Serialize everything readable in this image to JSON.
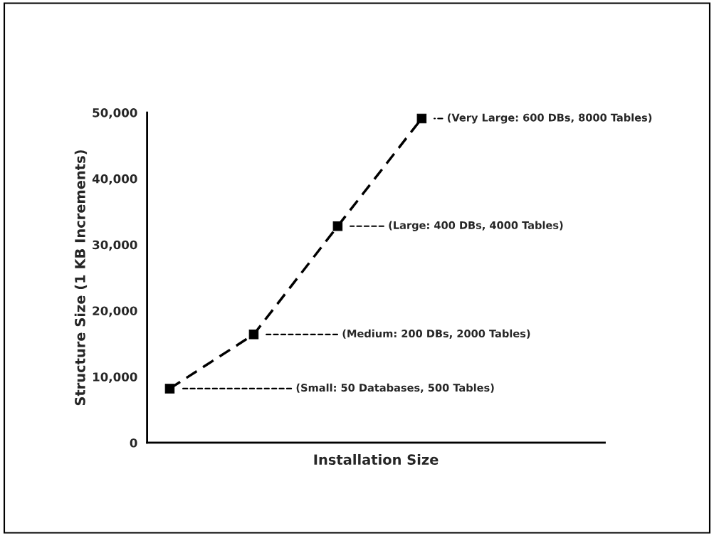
{
  "chart_data": {
    "type": "line",
    "xlabel": "Installation Size",
    "ylabel": "Structure Size (1 KB Increments)",
    "categories": [
      null,
      null,
      null,
      null
    ],
    "series": [
      {
        "color": "#000000",
        "values": [
          8200,
          16400,
          32800,
          49100
        ]
      }
    ],
    "marker": "square",
    "line_style": "dashed",
    "ylim": [
      0,
      50000
    ],
    "yticks": [
      {
        "value": 0,
        "label": "0"
      },
      {
        "value": 10000,
        "label": "10,000"
      },
      {
        "value": 20000,
        "label": "20,000"
      },
      {
        "value": 30000,
        "label": "30,000"
      },
      {
        "value": 40000,
        "label": "40,000"
      },
      {
        "value": 50000,
        "label": "50,000"
      }
    ],
    "grid": false,
    "annotations": [
      "(Small: 50 Databases, 500 Tables)",
      "(Medium: 200 DBs, 2000 Tables)",
      "(Large: 400 DBs, 4000 Tables)",
      "(Very Large: 600 DBs, 8000 Tables)"
    ]
  }
}
